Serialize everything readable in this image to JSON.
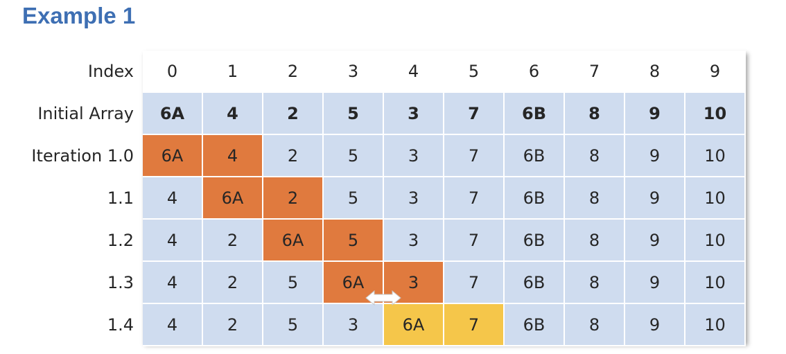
{
  "title": "Example 1",
  "colors": {
    "cell_default": "#cfdcef",
    "cell_active": "#e07a3e",
    "cell_swapped": "#f5c64a",
    "title": "#3e6fb3"
  },
  "table": {
    "rows": [
      {
        "label": "Index",
        "style": "header",
        "cells": [
          "0",
          "1",
          "2",
          "3",
          "4",
          "5",
          "6",
          "7",
          "8",
          "9"
        ],
        "highlight": []
      },
      {
        "label": "Initial Array",
        "style": "bold",
        "cells": [
          "6A",
          "4",
          "2",
          "5",
          "3",
          "7",
          "6B",
          "8",
          "9",
          "10"
        ],
        "highlight": []
      },
      {
        "label": "Iteration 1.0",
        "style": "normal",
        "cells": [
          "6A",
          "4",
          "2",
          "5",
          "3",
          "7",
          "6B",
          "8",
          "9",
          "10"
        ],
        "highlight": [
          "active",
          "active"
        ]
      },
      {
        "label": "1.1",
        "style": "normal",
        "cells": [
          "4",
          "6A",
          "2",
          "5",
          "3",
          "7",
          "6B",
          "8",
          "9",
          "10"
        ],
        "highlight": [
          "",
          "active",
          "active"
        ]
      },
      {
        "label": "1.2",
        "style": "normal",
        "cells": [
          "4",
          "2",
          "6A",
          "5",
          "3",
          "7",
          "6B",
          "8",
          "9",
          "10"
        ],
        "highlight": [
          "",
          "",
          "active",
          "active"
        ]
      },
      {
        "label": "1.3",
        "style": "normal",
        "cells": [
          "4",
          "2",
          "5",
          "6A",
          "3",
          "7",
          "6B",
          "8",
          "9",
          "10"
        ],
        "highlight": [
          "",
          "",
          "",
          "active",
          "active"
        ]
      },
      {
        "label": "1.4",
        "style": "normal",
        "cells": [
          "4",
          "2",
          "5",
          "3",
          "6A",
          "7",
          "6B",
          "8",
          "9",
          "10"
        ],
        "highlight": [
          "",
          "",
          "",
          "",
          "swapped",
          "swapped"
        ]
      }
    ]
  },
  "swap_arrow": {
    "icon": "double-arrow-icon"
  }
}
